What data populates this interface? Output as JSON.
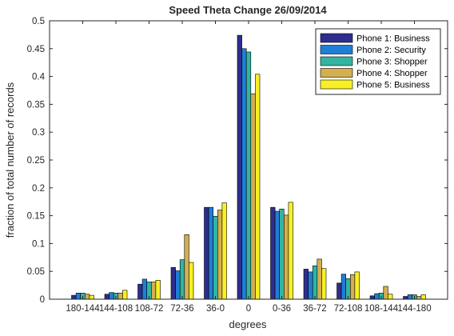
{
  "chart_data": {
    "type": "bar",
    "title": "Speed Theta Change 26/09/2014",
    "xlabel": "degrees",
    "ylabel": "fraction of total number of records",
    "ylim": [
      0,
      0.5
    ],
    "yticks": [
      0,
      0.05,
      0.1,
      0.15,
      0.2,
      0.25,
      0.3,
      0.35,
      0.4,
      0.45,
      0.5
    ],
    "ytick_labels": [
      "0",
      "0.05",
      "0.1",
      "0.15",
      "0.2",
      "0.25",
      "0.3",
      "0.35",
      "0.4",
      "0.45",
      "0.5"
    ],
    "categories": [
      "180-144",
      "144-108",
      "108-72",
      "72-36",
      "36-0",
      "0",
      "0-36",
      "36-72",
      "72-108",
      "108-144",
      "144-180"
    ],
    "grid": false,
    "legend_position": "top-right",
    "series": [
      {
        "name": "Phone 1: Business",
        "color": "#2e2e8f",
        "values": [
          0.007,
          0.009,
          0.027,
          0.057,
          0.165,
          0.474,
          0.165,
          0.054,
          0.029,
          0.006,
          0.005
        ]
      },
      {
        "name": "Phone 2: Security",
        "color": "#1f7ed6",
        "values": [
          0.011,
          0.012,
          0.036,
          0.051,
          0.165,
          0.45,
          0.158,
          0.049,
          0.045,
          0.01,
          0.008
        ]
      },
      {
        "name": "Phone 3: Shopper",
        "color": "#33b4a0",
        "values": [
          0.011,
          0.011,
          0.031,
          0.071,
          0.149,
          0.444,
          0.162,
          0.06,
          0.037,
          0.011,
          0.008
        ]
      },
      {
        "name": "Phone 4: Shopper",
        "color": "#d4ae50",
        "values": [
          0.009,
          0.011,
          0.031,
          0.116,
          0.16,
          0.369,
          0.151,
          0.072,
          0.044,
          0.023,
          0.005
        ]
      },
      {
        "name": "Phone 5: Business",
        "color": "#f8f024",
        "values": [
          0.007,
          0.016,
          0.034,
          0.066,
          0.173,
          0.404,
          0.174,
          0.055,
          0.049,
          0.009,
          0.008
        ]
      }
    ]
  }
}
